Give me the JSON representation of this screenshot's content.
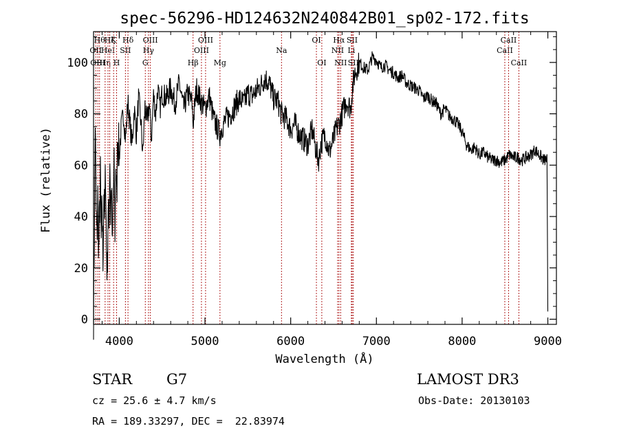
{
  "chart_data": {
    "type": "line",
    "title": "spec-56296-HD124632N240842B01_sp02-172.fits",
    "xlabel": "Wavelength (Å)",
    "ylabel": "Flux (relative)",
    "xlim": [
      3700,
      9100
    ],
    "ylim": [
      -2,
      112
    ],
    "x_ticks": [
      4000,
      5000,
      6000,
      7000,
      8000,
      9000
    ],
    "y_ticks": [
      0,
      20,
      40,
      60,
      80,
      100
    ],
    "grid": false,
    "line_color": "#000000",
    "marker_color": "#b22222",
    "series": [
      {
        "x": [
          3700,
          3710,
          3720,
          3730,
          3740,
          3750,
          3760,
          3770,
          3780,
          3790,
          3800,
          3810,
          3820,
          3830,
          3840,
          3850,
          3860,
          3870,
          3880,
          3890,
          3900,
          3910,
          3920,
          3930,
          3940,
          3950,
          3960,
          3970,
          3980,
          3990,
          4000,
          4025,
          4050,
          4075,
          4100,
          4125,
          4150,
          4175,
          4200,
          4225,
          4250,
          4275,
          4300,
          4325,
          4350,
          4375,
          4400,
          4425,
          4450,
          4475,
          4500,
          4550,
          4600,
          4650,
          4700,
          4750,
          4800,
          4850,
          4861,
          4900,
          4950,
          5000,
          5050,
          5100,
          5150,
          5175,
          5200,
          5250,
          5300,
          5350,
          5400,
          5450,
          5500,
          5550,
          5600,
          5650,
          5700,
          5750,
          5800,
          5850,
          5890,
          5950,
          6000,
          6050,
          6100,
          6150,
          6200,
          6250,
          6300,
          6330,
          6350,
          6400,
          6450,
          6500,
          6530,
          6563,
          6600,
          6650,
          6700,
          6720,
          6750,
          6800,
          6850,
          6900,
          6950,
          7000,
          7050,
          7100,
          7150,
          7200,
          7250,
          7300,
          7350,
          7400,
          7450,
          7500,
          7550,
          7600,
          7650,
          7700,
          7750,
          7800,
          7850,
          7900,
          7950,
          8000,
          8050,
          8100,
          8150,
          8200,
          8250,
          8300,
          8350,
          8400,
          8450,
          8500,
          8550,
          8600,
          8650,
          8700,
          8750,
          8800,
          8850,
          8900,
          8950,
          8990,
          9000
        ],
        "y": [
          2,
          35,
          78,
          42,
          30,
          48,
          25,
          40,
          55,
          30,
          45,
          22,
          50,
          38,
          60,
          28,
          18,
          45,
          35,
          65,
          40,
          52,
          25,
          48,
          58,
          35,
          62,
          44,
          72,
          68,
          64,
          75,
          80,
          70,
          85,
          76,
          68,
          82,
          72,
          86,
          78,
          64,
          83,
          76,
          84,
          70,
          87,
          80,
          90,
          82,
          88,
          86,
          90,
          84,
          92,
          82,
          88,
          84,
          76,
          90,
          85,
          82,
          87,
          78,
          74,
          72,
          75,
          78,
          80,
          83,
          86,
          84,
          88,
          87,
          89,
          91,
          94,
          92,
          86,
          85,
          80,
          78,
          74,
          76,
          72,
          70,
          68,
          74,
          65,
          62,
          68,
          72,
          65,
          70,
          74,
          76,
          80,
          85,
          82,
          90,
          96,
          100,
          98,
          97,
          102,
          101,
          98,
          99,
          97,
          96,
          94,
          95,
          92,
          91,
          90,
          89,
          86,
          87,
          85,
          84,
          80,
          82,
          79,
          78,
          76,
          73,
          68,
          66,
          67,
          64,
          65,
          63,
          62,
          62,
          61,
          62,
          64,
          63,
          63,
          62,
          63,
          64,
          66,
          64,
          62,
          62,
          3
        ]
      }
    ],
    "line_markers": [
      {
        "x": 3726,
        "labels": [
          "OII"
        ],
        "rows": [
          2
        ]
      },
      {
        "x": 3750,
        "labels": [
          "OIII"
        ],
        "rows": [
          3
        ]
      },
      {
        "x": 3770,
        "labels": [
          "Hθ"
        ],
        "rows": [
          1
        ]
      },
      {
        "x": 3835,
        "labels": [
          "Hη"
        ],
        "rows": [
          3
        ]
      },
      {
        "x": 3869,
        "labels": [
          "HeI"
        ],
        "rows": [
          2
        ]
      },
      {
        "x": 3889,
        "labels": [
          "Hζ"
        ],
        "rows": [
          1
        ]
      },
      {
        "x": 3934,
        "labels": [
          "K"
        ],
        "rows": [
          1
        ]
      },
      {
        "x": 3969,
        "labels": [
          "H"
        ],
        "rows": [
          3
        ]
      },
      {
        "x": 4072,
        "labels": [
          "SII"
        ],
        "rows": [
          2
        ]
      },
      {
        "x": 4102,
        "labels": [
          "Hδ"
        ],
        "rows": [
          1
        ]
      },
      {
        "x": 4304,
        "labels": [
          "G"
        ],
        "rows": [
          3
        ]
      },
      {
        "x": 4341,
        "labels": [
          "Hγ"
        ],
        "rows": [
          2
        ]
      },
      {
        "x": 4363,
        "labels": [
          "OIII"
        ],
        "rows": [
          1
        ]
      },
      {
        "x": 4861,
        "labels": [
          "Hβ"
        ],
        "rows": [
          3
        ]
      },
      {
        "x": 4959,
        "labels": [
          "OIII"
        ],
        "rows": [
          2
        ]
      },
      {
        "x": 5007,
        "labels": [
          "OIII"
        ],
        "rows": [
          1
        ]
      },
      {
        "x": 5175,
        "labels": [
          "Mg"
        ],
        "rows": [
          3
        ]
      },
      {
        "x": 5893,
        "labels": [
          "Na"
        ],
        "rows": [
          2
        ]
      },
      {
        "x": 6300,
        "labels": [
          "OI"
        ],
        "rows": [
          1
        ]
      },
      {
        "x": 6363,
        "labels": [
          "OI"
        ],
        "rows": [
          3
        ]
      },
      {
        "x": 6548,
        "labels": [
          "NII"
        ],
        "rows": [
          2
        ]
      },
      {
        "x": 6563,
        "labels": [
          "Hα"
        ],
        "rows": [
          1
        ]
      },
      {
        "x": 6583,
        "labels": [
          "NII"
        ],
        "rows": [
          3
        ]
      },
      {
        "x": 6708,
        "labels": [
          "Li"
        ],
        "rows": [
          2
        ]
      },
      {
        "x": 6717,
        "labels": [
          "SII"
        ],
        "rows": [
          1
        ]
      },
      {
        "x": 6731,
        "labels": [
          "SII"
        ],
        "rows": [
          3
        ]
      },
      {
        "x": 8498,
        "labels": [
          "CaII"
        ],
        "rows": [
          2
        ]
      },
      {
        "x": 8542,
        "labels": [
          "CaII"
        ],
        "rows": [
          1
        ]
      },
      {
        "x": 8662,
        "labels": [
          "CaII"
        ],
        "rows": [
          3
        ]
      }
    ]
  },
  "info": {
    "object_type": "STAR",
    "subclass": "G7",
    "survey": "LAMOST DR3",
    "velocity": "cz = 25.6 ± 4.7 km/s",
    "obs_date": "Obs-Date: 20130103",
    "coords": "RA = 189.33297, DEC =  22.83974"
  }
}
